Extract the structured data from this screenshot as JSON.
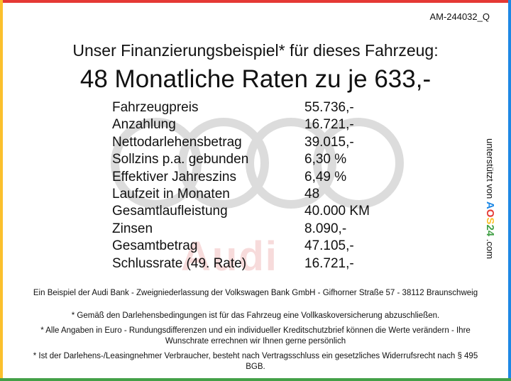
{
  "ref_code": "AM-244032_Q",
  "headline": "Unser Finanzierungsbeispiel* für dieses Fahrzeug:",
  "subheadline": "48 Monatliche Raten zu je 633,-",
  "rows": [
    {
      "label": "Fahrzeugpreis",
      "value": "55.736,-"
    },
    {
      "label": "Anzahlung",
      "value": "16.721,-"
    },
    {
      "label": "Nettodarlehensbetrag",
      "value": "39.015,-"
    },
    {
      "label": "Sollzins p.a. gebunden",
      "value": "6,30 %"
    },
    {
      "label": "Effektiver Jahreszins",
      "value": "6,49 %"
    },
    {
      "label": "Laufzeit in Monaten",
      "value": "48"
    },
    {
      "label": "Gesamtlaufleistung",
      "value": "40.000 KM"
    },
    {
      "label": "Zinsen",
      "value": "8.090,-"
    },
    {
      "label": "Gesamtbetrag",
      "value": "47.105,-"
    },
    {
      "label": "Schlussrate (49. Rate)",
      "value": "16.721,-"
    }
  ],
  "lender_line": "Ein Beispiel der Audi Bank - Zweigniederlassung der Volkswagen Bank GmbH - Gifhorner Straße 57 - 38112 Braunschweig",
  "notes": [
    "* Gemäß den Darlehensbedingungen ist für das Fahrzeug eine Vollkaskoversicherung abzuschließen.",
    "* Alle Angaben in Euro - Rundungsdifferenzen und ein individueller Kreditschutzbrief können die Werte verändern - Ihre Wunschrate errechnen wir Ihnen gerne persönlich",
    "* Ist der Darlehens-/Leasingnehmer Verbraucher, besteht nach Vertragsschluss ein gesetzliches Widerrufsrecht nach § 495 BGB."
  ],
  "side": {
    "prefix": "unterstützt von",
    "brand_a": "A",
    "brand_o": "O",
    "brand_s": "S",
    "brand_24": "24",
    "suffix": ".com"
  },
  "watermark": "Audi",
  "colors": {
    "top_bar": "#e53935",
    "left_bar": "#fbc02d",
    "right_bar": "#1e88e5",
    "bottom_bar": "#43a047",
    "rings": "#d6d6d6"
  }
}
